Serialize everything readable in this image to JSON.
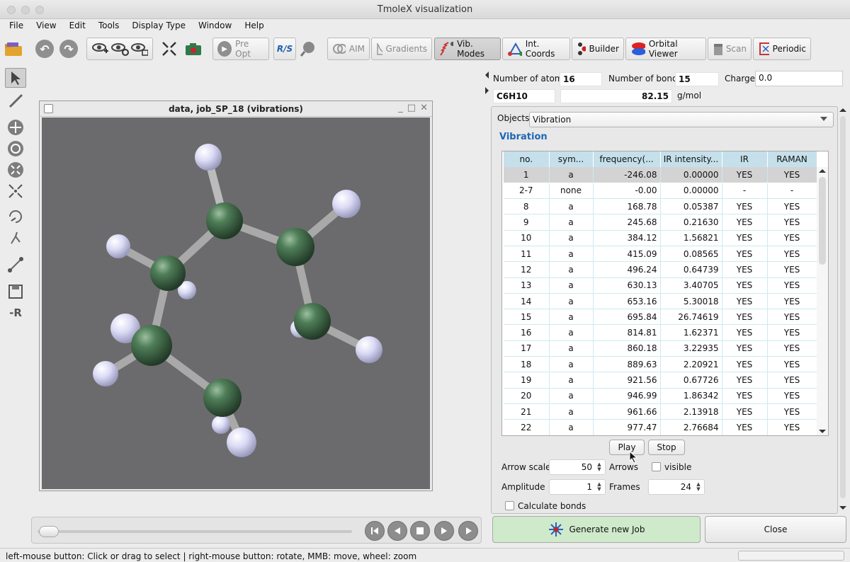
{
  "window": {
    "title": "TmoleX visualization"
  },
  "menu": [
    "File",
    "View",
    "Edit",
    "Tools",
    "Display Type",
    "Window",
    "Help"
  ],
  "toolbar": {
    "pre_opt": "Pre Opt",
    "rs": "R/S",
    "aim": "AIM",
    "gradients": "Gradients",
    "vib_modes": "Vib. Modes",
    "int_coords": "Int. Coords",
    "builder": "Builder",
    "orbital_viewer": "Orbital Viewer",
    "scan": "Scan",
    "periodic": "Periodic"
  },
  "left_tools": {
    "remove_r": "-R"
  },
  "subwindow": {
    "title": "data, job_SP_18 (vibrations)"
  },
  "info": {
    "atoms_label": "Number of atoms",
    "atoms_value": "16",
    "bonds_label": "Number of bonds",
    "bonds_value": "15",
    "charge_label": "Charge",
    "charge_value": "0.0",
    "formula": "C6H10",
    "mass": "82.15",
    "mass_unit": "g/mol"
  },
  "panel": {
    "objects_label": "Objects",
    "objects_value": "Vibration",
    "group_title": "Vibration",
    "columns": [
      "no.",
      "sym...",
      "frequency(...",
      "IR intensity...",
      "IR",
      "RAMAN"
    ],
    "rows": [
      {
        "no": "1",
        "sym": "a",
        "freq": "-246.08",
        "ir_int": "0.00000",
        "ir": "YES",
        "raman": "YES"
      },
      {
        "no": "2-7",
        "sym": "none",
        "freq": "-0.00",
        "ir_int": "0.00000",
        "ir": "-",
        "raman": "-"
      },
      {
        "no": "8",
        "sym": "a",
        "freq": "168.78",
        "ir_int": "0.05387",
        "ir": "YES",
        "raman": "YES"
      },
      {
        "no": "9",
        "sym": "a",
        "freq": "245.68",
        "ir_int": "0.21630",
        "ir": "YES",
        "raman": "YES"
      },
      {
        "no": "10",
        "sym": "a",
        "freq": "384.12",
        "ir_int": "1.56821",
        "ir": "YES",
        "raman": "YES"
      },
      {
        "no": "11",
        "sym": "a",
        "freq": "415.09",
        "ir_int": "0.08565",
        "ir": "YES",
        "raman": "YES"
      },
      {
        "no": "12",
        "sym": "a",
        "freq": "496.24",
        "ir_int": "0.64739",
        "ir": "YES",
        "raman": "YES"
      },
      {
        "no": "13",
        "sym": "a",
        "freq": "630.13",
        "ir_int": "3.40705",
        "ir": "YES",
        "raman": "YES"
      },
      {
        "no": "14",
        "sym": "a",
        "freq": "653.16",
        "ir_int": "5.30018",
        "ir": "YES",
        "raman": "YES"
      },
      {
        "no": "15",
        "sym": "a",
        "freq": "695.84",
        "ir_int": "26.74619",
        "ir": "YES",
        "raman": "YES"
      },
      {
        "no": "16",
        "sym": "a",
        "freq": "814.81",
        "ir_int": "1.62371",
        "ir": "YES",
        "raman": "YES"
      },
      {
        "no": "17",
        "sym": "a",
        "freq": "860.18",
        "ir_int": "3.22935",
        "ir": "YES",
        "raman": "YES"
      },
      {
        "no": "18",
        "sym": "a",
        "freq": "889.63",
        "ir_int": "2.20921",
        "ir": "YES",
        "raman": "YES"
      },
      {
        "no": "19",
        "sym": "a",
        "freq": "921.56",
        "ir_int": "0.67726",
        "ir": "YES",
        "raman": "YES"
      },
      {
        "no": "20",
        "sym": "a",
        "freq": "946.99",
        "ir_int": "1.86342",
        "ir": "YES",
        "raman": "YES"
      },
      {
        "no": "21",
        "sym": "a",
        "freq": "961.66",
        "ir_int": "2.13918",
        "ir": "YES",
        "raman": "YES"
      },
      {
        "no": "22",
        "sym": "a",
        "freq": "977.47",
        "ir_int": "2.76684",
        "ir": "YES",
        "raman": "YES"
      }
    ],
    "play": "Play",
    "stop": "Stop",
    "arrow_scale_label": "Arrow scale",
    "arrow_scale_value": "50",
    "arrows_label": "Arrows",
    "visible_label": "visible",
    "amplitude_label": "Amplitude",
    "amplitude_value": "1",
    "frames_label": "Frames",
    "frames_value": "24",
    "calc_bonds_label": "Calculate bonds"
  },
  "buttons": {
    "generate": "Generate new Job",
    "close": "Close"
  },
  "status": {
    "text": "left-mouse button: Click or drag to select | right-mouse button: rotate, MMB: move, wheel: zoom"
  },
  "colors": {
    "carbon": "#3f6a4a",
    "hydrogen": "#dcdcf8",
    "viewport_bg": "#6b6b6d",
    "header_bg": "#c5e0ea",
    "accent": "#1d67b8",
    "generate_bg": "#cfeacb"
  }
}
